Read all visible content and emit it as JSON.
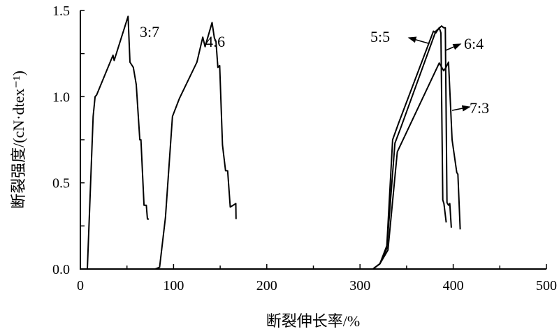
{
  "chart_data": {
    "type": "line",
    "title": "",
    "xlabel": "断裂伸长率/%",
    "ylabel": "断裂强度/(cN·dtex⁻¹)",
    "xlim": [
      0,
      500
    ],
    "ylim": [
      0,
      1.5
    ],
    "xticks": [
      0,
      100,
      200,
      300,
      400,
      500
    ],
    "xtick_labels": [
      "0",
      "100",
      "200",
      "300",
      "400",
      "500"
    ],
    "yticks": [
      0.0,
      0.5,
      1.0,
      1.5
    ],
    "ytick_labels": [
      "0.0",
      "0.5",
      "1.0",
      "1.5"
    ],
    "grid": false,
    "legend": "none",
    "line_color": "#000000",
    "series": [
      {
        "name": "3:7",
        "x": [
          0,
          7.5,
          13.7,
          15.8,
          17.5,
          35,
          36.3,
          51.2,
          53.2,
          56.8,
          60,
          63.8,
          65,
          68.3,
          70.8,
          72,
          73.5
        ],
        "y": [
          0,
          0,
          0.885,
          1.0,
          1.01,
          1.24,
          1.21,
          1.466,
          1.2,
          1.17,
          1.07,
          0.75,
          0.75,
          0.37,
          0.37,
          0.29,
          0.29
        ]
      },
      {
        "name": "4:6",
        "x": [
          0,
          80,
          85,
          91.3,
          98.8,
          106.3,
          125,
          131.3,
          133.8,
          141.3,
          143.8,
          145.5,
          147.5,
          149.5,
          152.5,
          155.8,
          158,
          160.8,
          164,
          166.8,
          167
        ],
        "y": [
          0,
          0,
          0.01,
          0.3,
          0.885,
          0.99,
          1.2,
          1.345,
          1.29,
          1.43,
          1.34,
          1.32,
          1.17,
          1.18,
          0.72,
          0.57,
          0.57,
          0.36,
          0.37,
          0.38,
          0.29
        ]
      },
      {
        "name": "5:5",
        "x": [
          0,
          313.8,
          321.3,
          328.8,
          335,
          341.3,
          378.8,
          381.3,
          385,
          386.8,
          388.8,
          390,
          392.5
        ],
        "y": [
          0,
          0,
          0.03,
          0.135,
          0.75,
          0.845,
          1.38,
          1.37,
          1.4,
          1.37,
          0.4,
          0.38,
          0.27
        ]
      },
      {
        "name": "6:4",
        "x": [
          0,
          313.8,
          321.3,
          328.8,
          337.5,
          343.8,
          381.3,
          387.5,
          389.8,
          391.5,
          393.3,
          395,
          396.3,
          398
        ],
        "y": [
          0,
          0,
          0.03,
          0.12,
          0.73,
          0.82,
          1.38,
          1.41,
          1.4,
          1.4,
          0.385,
          0.37,
          0.38,
          0.24
        ]
      },
      {
        "name": "7:3",
        "x": [
          0,
          313.8,
          321.3,
          330,
          340,
          385,
          389.8,
          392.3,
          395,
          398.8,
          403.8,
          405,
          407.5
        ],
        "y": [
          0,
          0,
          0.03,
          0.11,
          0.68,
          1.195,
          1.15,
          1.17,
          1.2,
          0.75,
          0.56,
          0.55,
          0.23
        ]
      }
    ],
    "annotations": [
      "3:7",
      "4:6",
      "5:5",
      "6:4",
      "7:3"
    ]
  }
}
